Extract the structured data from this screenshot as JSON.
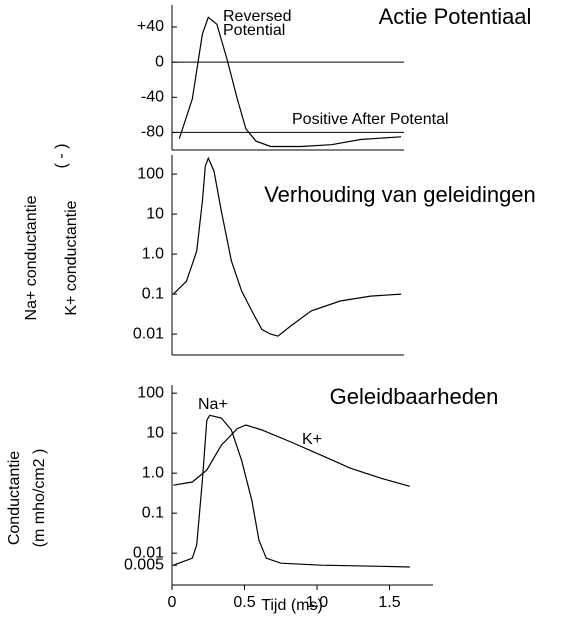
{
  "chart_data": [
    {
      "type": "line",
      "title": "Actie Potentiaal",
      "x": [
        0.05,
        0.14,
        0.21,
        0.25,
        0.31,
        0.38,
        0.45,
        0.51,
        0.58,
        0.68,
        0.89,
        1.1,
        1.3,
        1.58
      ],
      "values": [
        -87,
        -42,
        32,
        51,
        43,
        3,
        -42,
        -76,
        -90,
        -96,
        -96,
        -94,
        -88,
        -85
      ],
      "color": "#000000",
      "hlines": [
        0,
        -80
      ],
      "annotations": [
        "Reversed",
        "Potential",
        "Positive After Potental"
      ],
      "xlim": [
        0,
        1.6
      ],
      "ylim": [
        -100,
        65
      ],
      "yticks": [
        {
          "value": 40,
          "label": "+40"
        },
        0,
        -40,
        -80
      ]
    },
    {
      "type": "line",
      "title": "Verhouding van geleidingen",
      "ylabel": [
        "Na+ conductantie",
        "K+ conductantie",
        "( - )"
      ],
      "x": [
        0.01,
        0.1,
        0.17,
        0.21,
        0.23,
        0.25,
        0.29,
        0.34,
        0.41,
        0.48,
        0.55,
        0.62,
        0.68,
        0.73,
        0.82,
        0.96,
        1.16,
        1.37,
        1.58
      ],
      "values": [
        0.1,
        0.21,
        1.19,
        21,
        158,
        250,
        119,
        12,
        0.67,
        0.12,
        0.038,
        0.013,
        0.01,
        0.0089,
        0.016,
        0.038,
        0.067,
        0.089,
        0.1
      ],
      "color": "#000000",
      "log_scale": true,
      "xlim": [
        0,
        1.6
      ],
      "ylim": [
        0.003,
        300
      ],
      "yticks": [
        100,
        10,
        {
          "value": 1,
          "label": "1.0"
        },
        0.1,
        0.01
      ]
    },
    {
      "type": "line",
      "title": "Geleidbaarheden",
      "xlabel": "Tijd (ms)",
      "ylabel": [
        "Conductantie",
        "(m mho/cm2 )"
      ],
      "series": [
        {
          "name": "Na+",
          "color": "#000000",
          "x": [
            0.01,
            0.14,
            0.17,
            0.21,
            0.24,
            0.26,
            0.34,
            0.41,
            0.48,
            0.55,
            0.6,
            0.65,
            0.75,
            1.03,
            1.44,
            1.64
          ],
          "values": [
            0.005,
            0.0075,
            0.016,
            0.67,
            21,
            28,
            24,
            12,
            2.1,
            0.21,
            0.021,
            0.0075,
            0.0056,
            0.005,
            0.0047,
            0.0045
          ]
        },
        {
          "name": "K+",
          "color": "#000000",
          "x": [
            0.01,
            0.14,
            0.24,
            0.34,
            0.45,
            0.51,
            0.62,
            0.82,
            1.03,
            1.23,
            1.44,
            1.64
          ],
          "values": [
            0.5,
            0.6,
            1.19,
            5,
            13,
            16,
            12,
            6,
            2.8,
            1.33,
            0.75,
            0.47
          ]
        }
      ],
      "log_scale": true,
      "xlim": [
        0,
        1.8
      ],
      "ylim": [
        0.0016,
        160
      ],
      "xticks": [
        0,
        0.5,
        {
          "value": 1,
          "label": "1.0"
        },
        1.5
      ],
      "yticks": [
        100,
        10,
        {
          "value": 1,
          "label": "1.0"
        },
        0.1,
        0.01,
        0.005
      ]
    }
  ]
}
